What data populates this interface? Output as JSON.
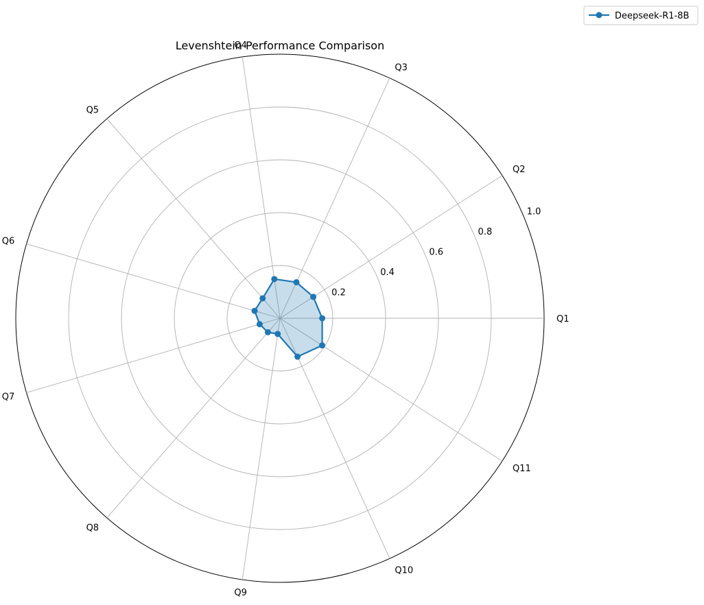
{
  "chart_data": {
    "type": "radar",
    "title": "Levenshtein Performance Comparison",
    "categories": [
      "Q1",
      "Q2",
      "Q3",
      "Q4",
      "Q5",
      "Q6",
      "Q7",
      "Q8",
      "Q9",
      "Q10",
      "Q11"
    ],
    "series": [
      {
        "name": "Deepseek-R1-8B",
        "values": [
          0.16,
          0.15,
          0.15,
          0.15,
          0.1,
          0.1,
          0.08,
          0.07,
          0.06,
          0.16,
          0.19
        ],
        "color": "#1f77b4"
      }
    ],
    "rlim": [
      0,
      1.0
    ],
    "rticks": [
      "0.2",
      "0.4",
      "0.6",
      "0.8",
      "1.0"
    ],
    "grid": true,
    "legend_position": "top-right"
  }
}
